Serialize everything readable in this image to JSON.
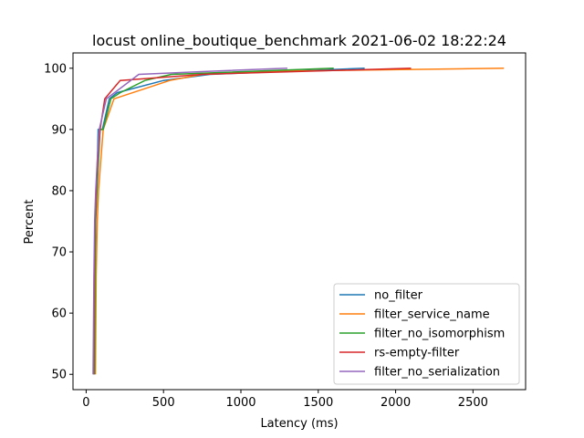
{
  "chart_data": {
    "type": "line",
    "title": "locust online_boutique_benchmark 2021-06-02 18:22:24",
    "xlabel": "Latency (ms)",
    "ylabel": "Percent",
    "xlim": [
      -85,
      2840
    ],
    "ylim": [
      47.5,
      102.5
    ],
    "x_ticks": [
      0,
      500,
      1000,
      1500,
      2000,
      2500
    ],
    "y_ticks": [
      50,
      60,
      70,
      80,
      90,
      100
    ],
    "grid": false,
    "legend_position": "lower-right",
    "series": [
      {
        "name": "no_filter",
        "color": "#1f77b4",
        "points": [
          [
            52,
            50
          ],
          [
            56,
            66
          ],
          [
            60,
            75
          ],
          [
            68,
            80
          ],
          [
            78,
            90
          ],
          [
            105,
            90
          ],
          [
            150,
            95
          ],
          [
            200,
            96
          ],
          [
            500,
            98
          ],
          [
            800,
            99
          ],
          [
            1800,
            100
          ]
        ]
      },
      {
        "name": "filter_service_name",
        "color": "#ff7f0e",
        "points": [
          [
            60,
            50
          ],
          [
            65,
            66
          ],
          [
            72,
            75
          ],
          [
            80,
            80
          ],
          [
            95,
            85
          ],
          [
            110,
            90
          ],
          [
            180,
            95
          ],
          [
            540,
            98
          ],
          [
            750,
            99
          ],
          [
            1200,
            99.5
          ],
          [
            2700,
            100
          ]
        ]
      },
      {
        "name": "filter_no_isomorphism",
        "color": "#2ca02c",
        "points": [
          [
            55,
            50
          ],
          [
            58,
            66
          ],
          [
            62,
            75
          ],
          [
            70,
            80
          ],
          [
            90,
            90
          ],
          [
            110,
            90
          ],
          [
            160,
            95
          ],
          [
            220,
            96
          ],
          [
            380,
            98
          ],
          [
            550,
            99
          ],
          [
            1600,
            100
          ]
        ]
      },
      {
        "name": "rs-empty-filter",
        "color": "#d62728",
        "points": [
          [
            48,
            50
          ],
          [
            52,
            66
          ],
          [
            58,
            75
          ],
          [
            65,
            80
          ],
          [
            75,
            85
          ],
          [
            90,
            90
          ],
          [
            120,
            95
          ],
          [
            220,
            98
          ],
          [
            750,
            99
          ],
          [
            2100,
            100
          ]
        ]
      },
      {
        "name": "filter_no_serialization",
        "color": "#9467bd",
        "points": [
          [
            45,
            50
          ],
          [
            50,
            66
          ],
          [
            55,
            75
          ],
          [
            62,
            80
          ],
          [
            72,
            85
          ],
          [
            85,
            90
          ],
          [
            130,
            95
          ],
          [
            340,
            99
          ],
          [
            800,
            99.5
          ],
          [
            1300,
            100
          ]
        ]
      }
    ]
  }
}
